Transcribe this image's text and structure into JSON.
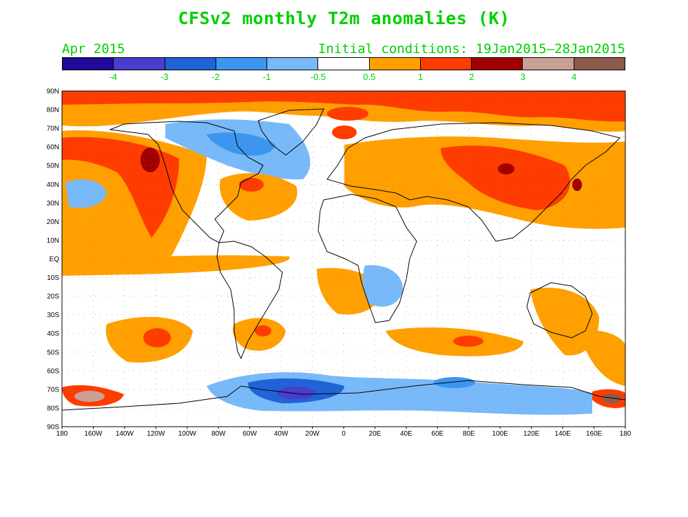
{
  "header": {
    "title": "CFSv2 monthly T2m anomalies (K)",
    "month": "Apr 2015",
    "initial_conditions": "Initial conditions: 19Jan2015–28Jan2015"
  },
  "colorbar": {
    "colors": [
      "#1e0a96",
      "#4a3ccc",
      "#1e64d6",
      "#3c96f0",
      "#78b9fa",
      "#ffffff",
      "#ffa000",
      "#ff3c00",
      "#a00000",
      "#c8a096",
      "#8c5a4b"
    ],
    "labels": [
      "-4",
      "-3",
      "-2",
      "-1",
      "-0.5",
      "0.5",
      "1",
      "2",
      "3",
      "4"
    ]
  },
  "axes": {
    "lat_labels": [
      "90N",
      "80N",
      "70N",
      "60N",
      "50N",
      "40N",
      "30N",
      "20N",
      "10N",
      "EQ",
      "10S",
      "20S",
      "30S",
      "40S",
      "50S",
      "60S",
      "70S",
      "80S",
      "90S"
    ],
    "lon_labels": [
      "180",
      "160W",
      "140W",
      "120W",
      "100W",
      "80W",
      "60W",
      "40W",
      "20W",
      "0",
      "20E",
      "40E",
      "60E",
      "80E",
      "100E",
      "120E",
      "140E",
      "160E",
      "180"
    ]
  }
}
